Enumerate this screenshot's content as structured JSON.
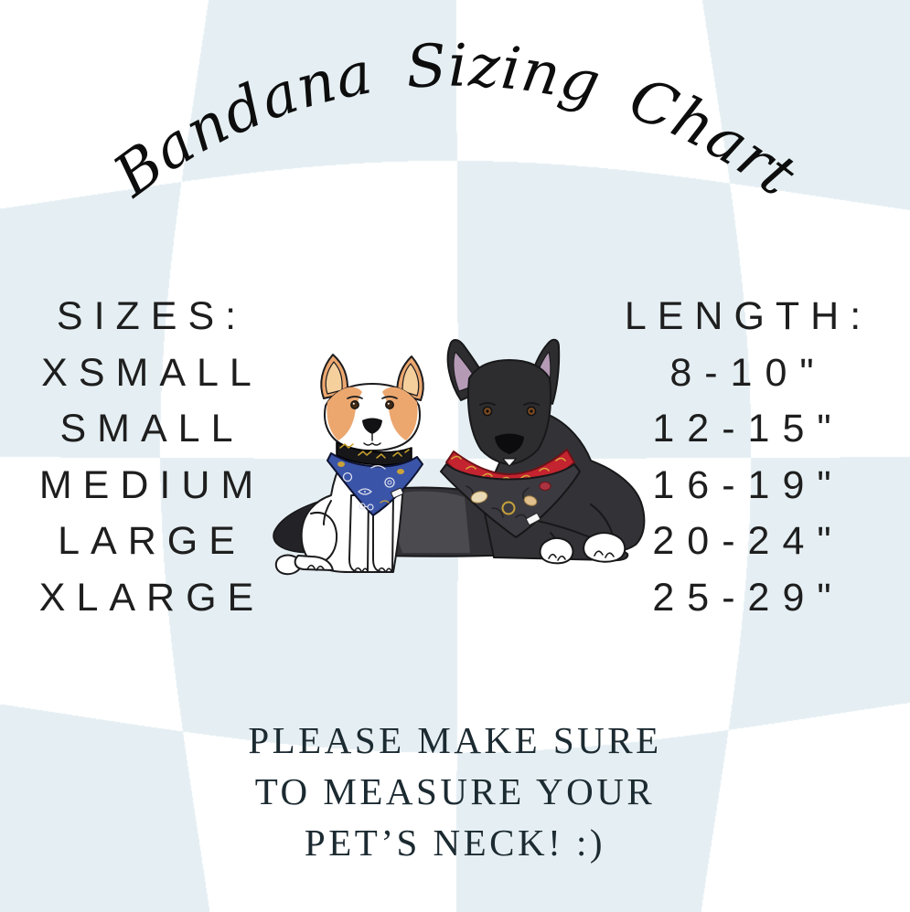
{
  "title": "Bandana Sizing Chart",
  "chart_data": {
    "type": "table",
    "title": "Bandana Sizing Chart",
    "columns": [
      "SIZES:",
      "LENGTH:"
    ],
    "rows": [
      [
        "XSMALL",
        "8-10\""
      ],
      [
        "SMALL",
        "12-15\""
      ],
      [
        "MEDIUM",
        "16-19\""
      ],
      [
        "LARGE",
        "20-24\""
      ],
      [
        "XLARGE",
        "25-29\""
      ]
    ]
  },
  "footer": {
    "line1": "PLEASE MAKE SURE",
    "line2": "TO MEASURE YOUR",
    "line3": "PET’S NECK! :)"
  },
  "illustration": {
    "description": "Two cartoon dogs wearing patterned bandanas",
    "left_dog": "white and tan corgi mix wearing a blue patterned bandana with gold collar",
    "right_dog": "black shepherd mix wearing a red and charcoal patterned bandana"
  },
  "colors": {
    "background_white": "#ffffff",
    "background_blue": "#e5eff3",
    "text_dark": "#1e1e1e",
    "serif_text": "#1c2a31",
    "blue_bandana": "#3a54a8",
    "red_bandana": "#c3242f",
    "charcoal_bandana": "#3b3a40",
    "tan_fur": "#eca76f",
    "black_fur": "#333337",
    "gold_accent": "#c9a22e"
  }
}
